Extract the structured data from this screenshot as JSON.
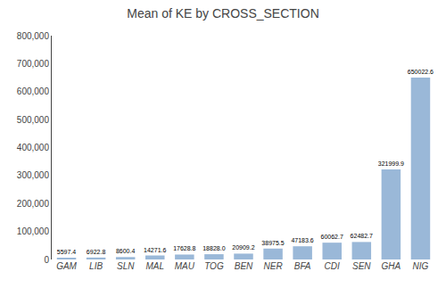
{
  "chart_data": {
    "type": "bar",
    "title": "Mean of KE by CROSS_SECTION",
    "categories": [
      "GAM",
      "LIB",
      "SLN",
      "MAL",
      "MAU",
      "TOG",
      "BEN",
      "NER",
      "BFA",
      "CDI",
      "SEN",
      "GHA",
      "NIG"
    ],
    "values": [
      5597.4,
      6922.8,
      8600.4,
      14271.6,
      17628.8,
      18828.0,
      20909.2,
      38975.5,
      47183.6,
      60062.7,
      62482.7,
      321999.9,
      650022.6
    ],
    "value_labels": [
      "5597.4",
      "6922.8",
      "8600.4",
      "14271.6",
      "17628.8",
      "18828.0",
      "20909.2",
      "38975.5",
      "47183.6",
      "60062.7",
      "62482.7",
      "321999.9",
      "650022.6"
    ],
    "data_labels": true,
    "color": "#9ab8d8",
    "ylim": [
      0,
      800000
    ],
    "yticks": [
      0,
      {
        "value": 100000,
        "label": "100,000"
      },
      {
        "value": 200000,
        "label": "200,000"
      },
      {
        "value": 300000,
        "label": "300,000"
      },
      {
        "value": 400000,
        "label": "400,000"
      },
      {
        "value": 500000,
        "label": "500,000"
      },
      {
        "value": 600000,
        "label": "600,000"
      },
      {
        "value": 700000,
        "label": "700,000"
      },
      {
        "value": 800000,
        "label": "800,000"
      }
    ],
    "grid": false
  }
}
